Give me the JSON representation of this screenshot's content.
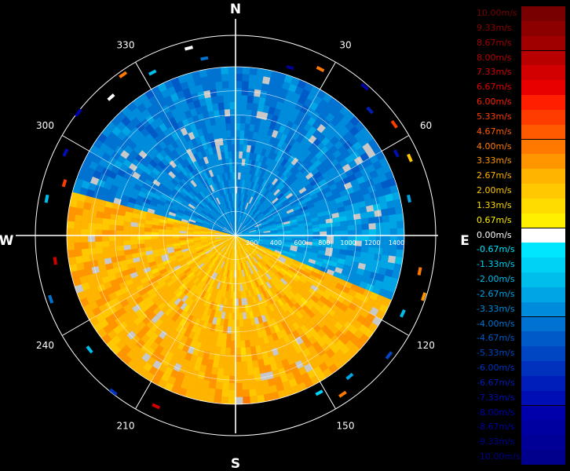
{
  "chart_data": {
    "type": "heatmap",
    "subtype": "polar radial-velocity display (PPI)",
    "compass": {
      "north": "N",
      "east": "E",
      "south": "S",
      "west": "W"
    },
    "bearing_labels": [
      "30",
      "60",
      "120",
      "150",
      "210",
      "240",
      "300",
      "330"
    ],
    "range_labels": [
      "200",
      "400",
      "600",
      "800",
      "1000",
      "1200",
      "1400"
    ],
    "range_max": 1400,
    "rings": [
      200,
      400,
      600,
      800,
      1000,
      1200
    ],
    "unit": "m/s",
    "field_regions": [
      {
        "azimuth_from": 285,
        "azimuth_to": 75,
        "velocity": -3.33,
        "description": "approaching (blue) north sector"
      },
      {
        "azimuth_from": 75,
        "azimuth_to": 112,
        "velocity": -2.67,
        "description": "approaching (blue) east sector"
      },
      {
        "azimuth_from": 112,
        "azimuth_to": 285,
        "velocity": 2.0,
        "description": "receding (yellow-orange) south/west sector"
      }
    ],
    "legend": {
      "entries": [
        {
          "label": "10.00m/s",
          "value": 10.0,
          "color": "#780000"
        },
        {
          "label": "9.33m/s",
          "value": 9.33,
          "color": "#8c0000"
        },
        {
          "label": "8.67m/s",
          "value": 8.67,
          "color": "#a00000"
        },
        {
          "label": "8.00m/s",
          "value": 8.0,
          "color": "#b80000"
        },
        {
          "label": "7.33m/s",
          "value": 7.33,
          "color": "#d20000"
        },
        {
          "label": "6.67m/s",
          "value": 6.67,
          "color": "#e80000"
        },
        {
          "label": "6.00m/s",
          "value": 6.0,
          "color": "#ff1e00"
        },
        {
          "label": "5.33m/s",
          "value": 5.33,
          "color": "#ff3c00"
        },
        {
          "label": "4.67m/s",
          "value": 4.67,
          "color": "#ff5a00"
        },
        {
          "label": "4.00m/s",
          "value": 4.0,
          "color": "#ff7800"
        },
        {
          "label": "3.33m/s",
          "value": 3.33,
          "color": "#ff9600"
        },
        {
          "label": "2.67m/s",
          "value": 2.67,
          "color": "#ffb400"
        },
        {
          "label": "2.00m/s",
          "value": 2.0,
          "color": "#ffc800"
        },
        {
          "label": "1.33m/s",
          "value": 1.33,
          "color": "#ffdc00"
        },
        {
          "label": "0.67m/s",
          "value": 0.67,
          "color": "#fff000"
        },
        {
          "label": "0.00m/s",
          "value": 0.0,
          "color": "#ffffff"
        },
        {
          "label": "-0.67m/s",
          "value": -0.67,
          "color": "#00e6ff"
        },
        {
          "label": "-1.33m/s",
          "value": -1.33,
          "color": "#00d2f5"
        },
        {
          "label": "-2.00m/s",
          "value": -2.0,
          "color": "#00beeb"
        },
        {
          "label": "-2.67m/s",
          "value": -2.67,
          "color": "#00a5e6"
        },
        {
          "label": "-3.33m/s",
          "value": -3.33,
          "color": "#008cdc"
        },
        {
          "label": "-4.00m/s",
          "value": -4.0,
          "color": "#0073d2"
        },
        {
          "label": "-4.67m/s",
          "value": -4.67,
          "color": "#005ac8"
        },
        {
          "label": "-5.33m/s",
          "value": -5.33,
          "color": "#0046c3"
        },
        {
          "label": "-6.00m/s",
          "value": -6.0,
          "color": "#0032be"
        },
        {
          "label": "-6.67m/s",
          "value": -6.67,
          "color": "#001eb9"
        },
        {
          "label": "-7.33m/s",
          "value": -7.33,
          "color": "#000fb4"
        },
        {
          "label": "-8.00m/s",
          "value": -8.0,
          "color": "#0000aa"
        },
        {
          "label": "-8.67m/s",
          "value": -8.67,
          "color": "#0000a0"
        },
        {
          "label": "-9.33m/s",
          "value": -9.33,
          "color": "#000096"
        },
        {
          "label": "-10.00m/s",
          "value": -10.0,
          "color": "#00008c"
        }
      ]
    },
    "colors": {
      "background": "#000000",
      "grid": "#ffffff",
      "nodata": "#c8c8c8"
    }
  }
}
